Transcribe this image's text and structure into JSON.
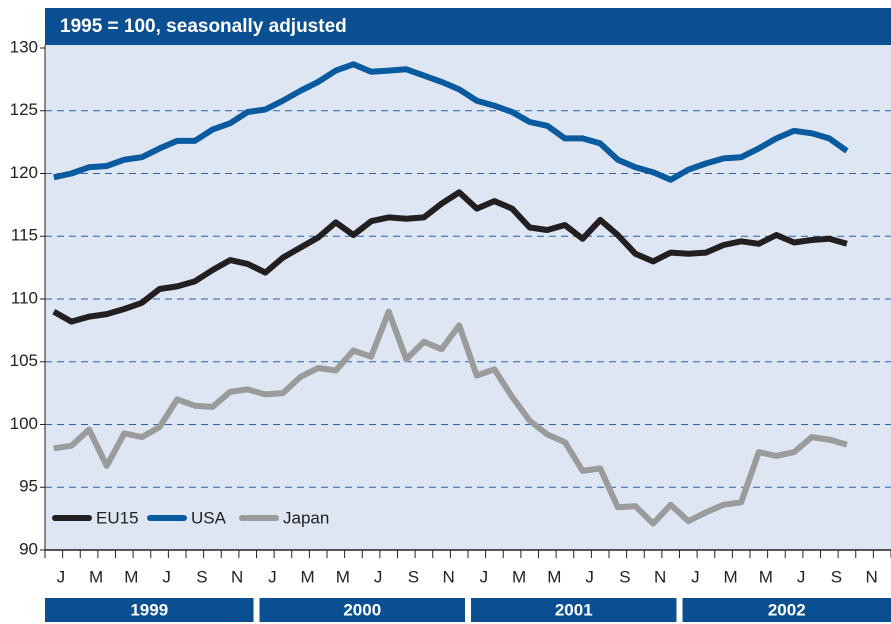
{
  "chart_data": {
    "type": "line",
    "title": "1995 = 100, seasonally adjusted",
    "categories": [
      "J",
      null,
      "M",
      null,
      "M",
      null,
      "J",
      null,
      "S",
      null,
      "N",
      null,
      "J",
      null,
      "M",
      null,
      "M",
      null,
      "J",
      null,
      "S",
      null,
      "N",
      null,
      "J",
      null,
      "M",
      null,
      "M",
      null,
      "J",
      null,
      "S",
      null,
      "N",
      null,
      "J",
      null,
      "M",
      null,
      "M",
      null,
      "J",
      null,
      "S",
      null,
      "N",
      null
    ],
    "years": [
      "1999",
      "2000",
      "2001",
      "2002"
    ],
    "series": [
      {
        "name": "EU15",
        "color": "#231f20",
        "values": [
          109.0,
          108.2,
          108.6,
          108.8,
          109.2,
          109.7,
          110.8,
          111.0,
          111.4,
          112.3,
          113.1,
          112.8,
          112.1,
          113.3,
          114.1,
          114.9,
          116.1,
          115.1,
          116.2,
          116.5,
          116.4,
          116.5,
          117.6,
          118.5,
          117.2,
          117.8,
          117.2,
          115.7,
          115.5,
          115.9,
          114.8,
          116.3,
          115.1,
          113.6,
          113.0,
          113.7,
          113.6,
          113.7,
          114.3,
          114.6,
          114.4,
          115.1,
          114.5,
          114.7,
          114.8,
          114.4,
          null,
          null
        ]
      },
      {
        "name": "USA",
        "color": "#0a5aa0",
        "values": [
          119.7,
          120.0,
          120.5,
          120.6,
          121.1,
          121.3,
          122.0,
          122.6,
          122.6,
          123.5,
          124.0,
          124.9,
          125.1,
          125.8,
          126.6,
          127.3,
          128.2,
          128.7,
          128.1,
          128.2,
          128.3,
          127.8,
          127.3,
          126.7,
          125.8,
          125.4,
          124.9,
          124.1,
          123.8,
          122.8,
          122.8,
          122.4,
          121.1,
          120.5,
          120.1,
          119.5,
          120.3,
          120.8,
          121.2,
          121.3,
          122.0,
          122.8,
          123.4,
          123.2,
          122.8,
          121.8,
          null,
          null
        ]
      },
      {
        "name": "Japan",
        "color": "#9b9b9b",
        "values": [
          98.1,
          98.3,
          99.6,
          96.7,
          99.3,
          99.0,
          99.8,
          102.0,
          101.5,
          101.4,
          102.6,
          102.8,
          102.4,
          102.5,
          103.8,
          104.5,
          104.3,
          105.9,
          105.4,
          109.0,
          105.2,
          106.6,
          106.0,
          107.9,
          103.9,
          104.4,
          102.2,
          100.3,
          99.2,
          98.6,
          96.3,
          96.5,
          93.4,
          93.5,
          92.1,
          93.6,
          92.3,
          93.0,
          93.6,
          93.8,
          97.8,
          97.5,
          97.8,
          99.0,
          98.8,
          98.4,
          null,
          null
        ]
      }
    ],
    "ylim": [
      90,
      130
    ],
    "yticks": [
      90,
      95,
      100,
      105,
      110,
      115,
      120,
      125,
      130
    ],
    "grid": true,
    "legend": "lower left"
  }
}
